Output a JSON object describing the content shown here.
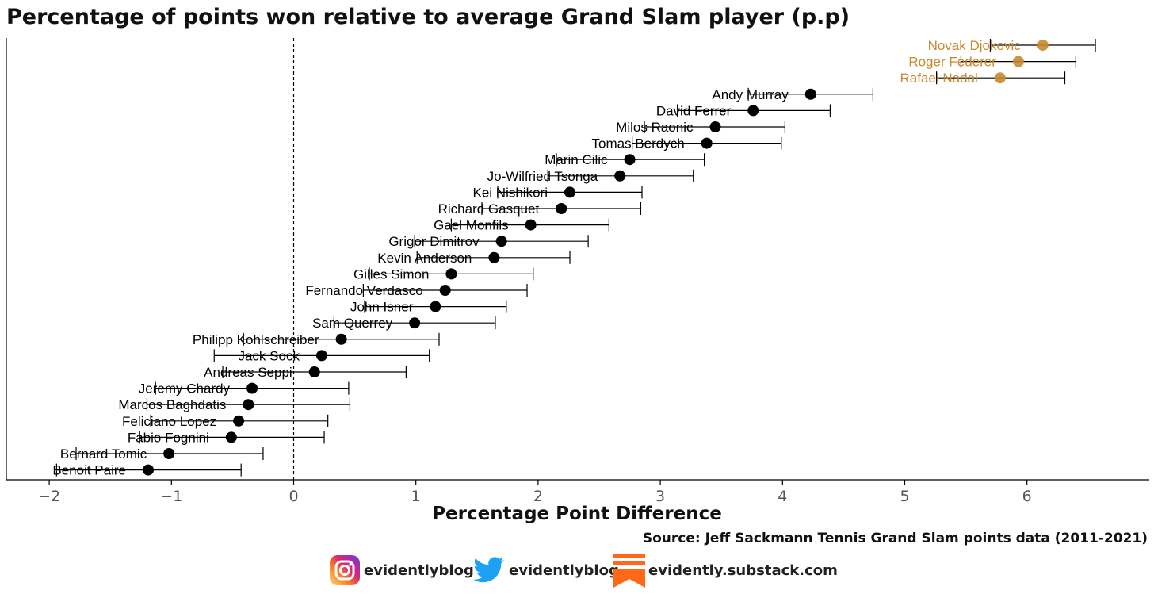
{
  "chart_data": {
    "type": "scatter",
    "title": "Percentage of points won relative to average Grand Slam player (p.p)",
    "xlabel": "Percentage Point Difference",
    "ylabel": "",
    "xlim": [
      -2.4,
      7.0
    ],
    "xticks": [
      -2,
      -1,
      0,
      1,
      2,
      3,
      4,
      5,
      6
    ],
    "xtick_labels": [
      "−2",
      "−1",
      "0",
      "1",
      "2",
      "3",
      "4",
      "5",
      "6"
    ],
    "reference_line": 0,
    "grid": false,
    "highlight_color": "#c8882d",
    "default_color": "#000000",
    "points": [
      {
        "player": "Novak Djokovic",
        "value": 6.13,
        "low": 5.7,
        "high": 6.56,
        "highlight": true
      },
      {
        "player": "Roger Federer",
        "value": 5.93,
        "low": 5.46,
        "high": 6.4,
        "highlight": true
      },
      {
        "player": "Rafael Nadal",
        "value": 5.78,
        "low": 5.26,
        "high": 6.31,
        "highlight": true
      },
      {
        "player": "Andy Murray",
        "value": 4.23,
        "low": 3.72,
        "high": 4.74
      },
      {
        "player": "David Ferrer",
        "value": 3.76,
        "low": 3.14,
        "high": 4.39
      },
      {
        "player": "Milos Raonic",
        "value": 3.45,
        "low": 2.87,
        "high": 4.02
      },
      {
        "player": "Tomas Berdych",
        "value": 3.38,
        "low": 2.77,
        "high": 3.99
      },
      {
        "player": "Marin Cilic",
        "value": 2.75,
        "low": 2.15,
        "high": 3.36
      },
      {
        "player": "Jo-Wilfried Tsonga",
        "value": 2.67,
        "low": 2.08,
        "high": 3.27
      },
      {
        "player": "Kei Nishikori",
        "value": 2.26,
        "low": 1.67,
        "high": 2.85
      },
      {
        "player": "Richard Gasquet",
        "value": 2.19,
        "low": 1.54,
        "high": 2.84
      },
      {
        "player": "Gael Monfils",
        "value": 1.94,
        "low": 1.29,
        "high": 2.58
      },
      {
        "player": "Grigor Dimitrov",
        "value": 1.7,
        "low": 0.99,
        "high": 2.41
      },
      {
        "player": "Kevin Anderson",
        "value": 1.64,
        "low": 1.01,
        "high": 2.26
      },
      {
        "player": "Gilles Simon",
        "value": 1.29,
        "low": 0.62,
        "high": 1.96
      },
      {
        "player": "Fernando Verdasco",
        "value": 1.24,
        "low": 0.57,
        "high": 1.91
      },
      {
        "player": "John Isner",
        "value": 1.16,
        "low": 0.58,
        "high": 1.74
      },
      {
        "player": "Sam Querrey",
        "value": 0.99,
        "low": 0.33,
        "high": 1.65
      },
      {
        "player": "Philipp Kohlschreiber",
        "value": 0.39,
        "low": -0.41,
        "high": 1.19
      },
      {
        "player": "Jack Sock",
        "value": 0.23,
        "low": -0.65,
        "high": 1.11
      },
      {
        "player": "Andreas Seppi",
        "value": 0.17,
        "low": -0.58,
        "high": 0.92
      },
      {
        "player": "Jeremy Chardy",
        "value": -0.34,
        "low": -1.13,
        "high": 0.45
      },
      {
        "player": "Marcos Baghdatis",
        "value": -0.37,
        "low": -1.2,
        "high": 0.46
      },
      {
        "player": "Feliciano Lopez",
        "value": -0.45,
        "low": -1.17,
        "high": 0.28
      },
      {
        "player": "Fabio Fognini",
        "value": -0.51,
        "low": -1.26,
        "high": 0.25
      },
      {
        "player": "Bernard Tomic",
        "value": -1.02,
        "low": -1.78,
        "high": -0.25
      },
      {
        "player": "Benoit Paire",
        "value": -1.19,
        "low": -1.94,
        "high": -0.43
      }
    ]
  },
  "source": "Source: Jeff Sackmann Tennis Grand Slam points data (2011-2021)",
  "social": {
    "instagram": {
      "icon": "instagram-icon",
      "handle": "evidentlyblog",
      "color": "#d6249f"
    },
    "twitter": {
      "icon": "twitter-bird-icon",
      "handle": "evidentlyblog",
      "color": "#1da1f2"
    },
    "substack": {
      "icon": "substack-icon",
      "handle": "evidently.substack.com",
      "color": "#ff6719"
    }
  }
}
